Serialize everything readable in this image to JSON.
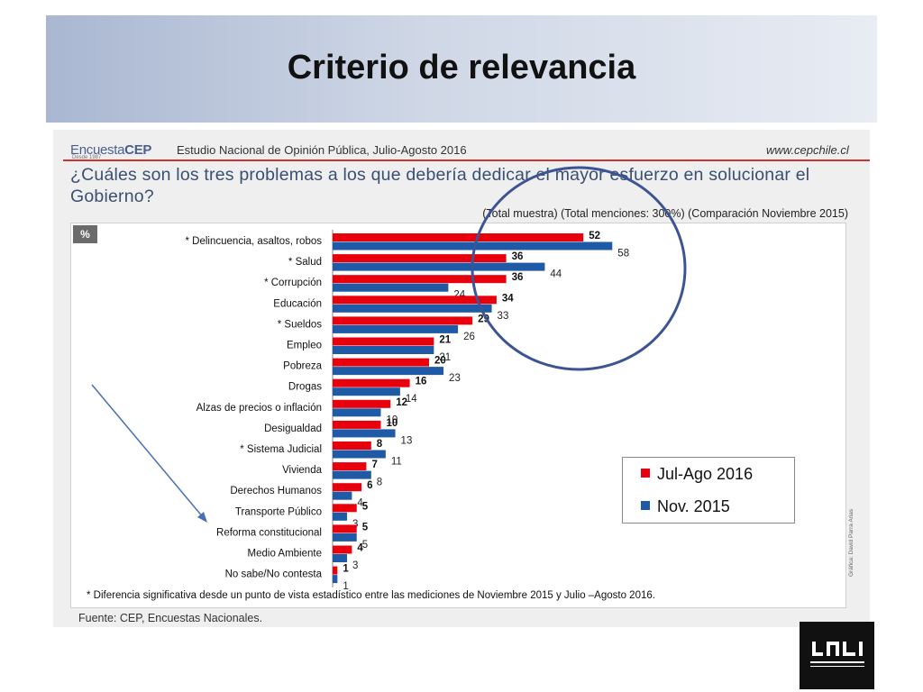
{
  "slide": {
    "title": "Criterio de relevancia"
  },
  "header": {
    "brand_prefix": "Encuesta",
    "brand_suffix": "CEP",
    "since": "Desde 1987",
    "study": "Estudio Nacional de Opinión Pública, Julio-Agosto 2016",
    "url": "www.cepchile.cl"
  },
  "question": "¿Cuáles son los tres problemas a los que debería dedicar el mayor esfuerzo en solucionar el Gobierno?",
  "subtitle": "(Total muestra) (Total menciones: 300%) (Comparación Noviembre 2015)",
  "percent_badge": "%",
  "footnote": "* Diferencia significativa desde un punto de vista estadístico entre las mediciones de Noviembre 2015 y Julio –Agosto 2016.",
  "source": "Fuente: CEP, Encuestas Nacionales.",
  "credit": "Gráfica: David Parra Arias",
  "colors": {
    "series1": "#e8000d",
    "series2": "#1f5aa6",
    "circle": "#3d5494",
    "arrow": "#4a6fb5"
  },
  "chart_data": {
    "type": "bar",
    "orientation": "horizontal",
    "categories": [
      "* Delincuencia, asaltos, robos",
      "* Salud",
      "* Corrupción",
      "Educación",
      "* Sueldos",
      "Empleo",
      "Pobreza",
      "Drogas",
      "Alzas de precios o inflación",
      "Desigualdad",
      "* Sistema Judicial",
      "Vivienda",
      "Derechos Humanos",
      "Transporte Público",
      "Reforma constitucional",
      "Medio Ambiente",
      "No sabe/No contesta"
    ],
    "series": [
      {
        "name": "Jul-Ago 2016",
        "values": [
          52,
          36,
          36,
          34,
          29,
          21,
          20,
          16,
          12,
          10,
          8,
          7,
          6,
          5,
          5,
          4,
          1
        ]
      },
      {
        "name": "Nov. 2015",
        "values": [
          58,
          44,
          24,
          33,
          26,
          21,
          23,
          14,
          10,
          13,
          11,
          8,
          4,
          3,
          5,
          3,
          1
        ]
      }
    ],
    "legend_position": "bottom-right",
    "grid": false
  }
}
